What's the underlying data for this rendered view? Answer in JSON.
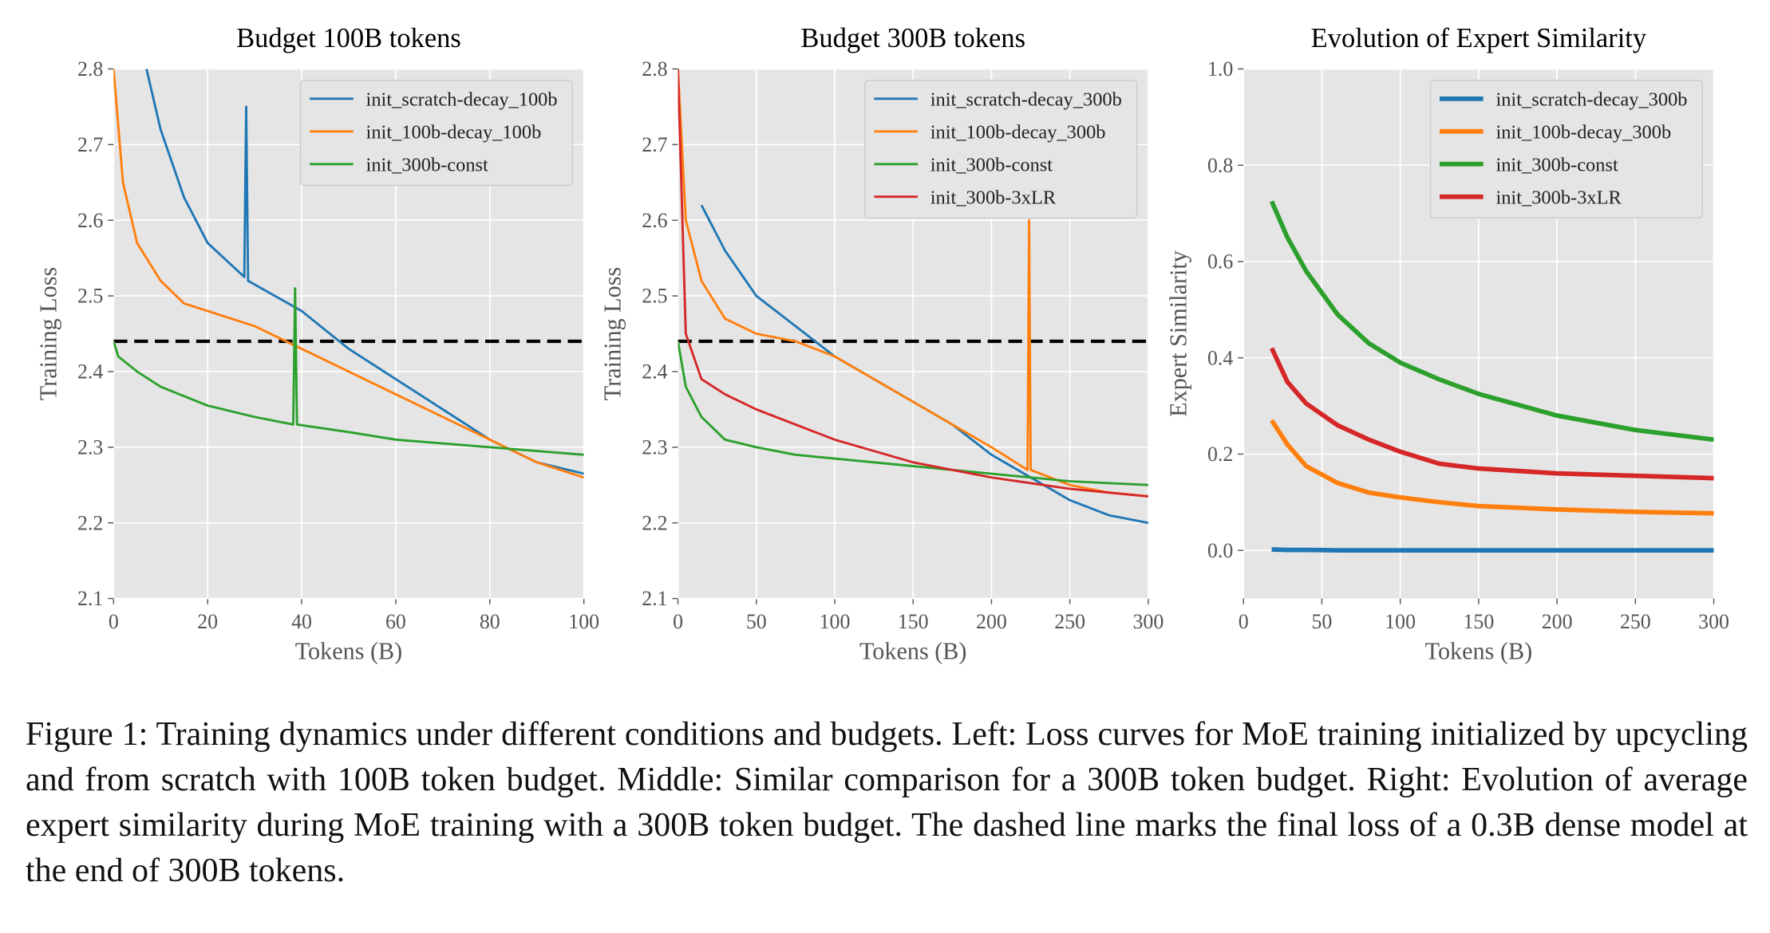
{
  "chart_data": [
    {
      "type": "line",
      "title": "Budget 100B tokens",
      "xlabel": "Tokens (B)",
      "ylabel": "Training Loss",
      "xlim": [
        0,
        100
      ],
      "ylim": [
        2.1,
        2.8
      ],
      "xticks": [
        0,
        20,
        40,
        60,
        80,
        100
      ],
      "yticks": [
        2.1,
        2.2,
        2.3,
        2.4,
        2.5,
        2.6,
        2.7,
        2.8
      ],
      "grid": true,
      "legend": "upper right",
      "hlines": [
        2.44
      ],
      "series": [
        {
          "name": "init_scratch-decay_100b",
          "color": "#1f77b4",
          "x": [
            7,
            10,
            15,
            20,
            27.8,
            28.2,
            28.6,
            40,
            50,
            60,
            70,
            80,
            90,
            100
          ],
          "values": [
            2.8,
            2.72,
            2.63,
            2.57,
            2.525,
            2.75,
            2.52,
            2.48,
            2.43,
            2.39,
            2.35,
            2.31,
            2.28,
            2.265
          ]
        },
        {
          "name": "init_100b-decay_100b",
          "color": "#ff7f0e",
          "x": [
            0,
            2,
            5,
            10,
            15,
            20,
            30,
            40,
            50,
            60,
            70,
            80,
            90,
            100
          ],
          "values": [
            2.8,
            2.65,
            2.57,
            2.52,
            2.49,
            2.48,
            2.46,
            2.43,
            2.4,
            2.37,
            2.34,
            2.31,
            2.28,
            2.26
          ]
        },
        {
          "name": "init_300b-const",
          "color": "#2ca02c",
          "x": [
            0,
            1,
            5,
            10,
            20,
            30,
            38.2,
            38.6,
            39,
            50,
            60,
            70,
            80,
            90,
            100
          ],
          "values": [
            2.44,
            2.42,
            2.4,
            2.38,
            2.355,
            2.34,
            2.33,
            2.51,
            2.33,
            2.32,
            2.31,
            2.305,
            2.3,
            2.295,
            2.29
          ]
        }
      ]
    },
    {
      "type": "line",
      "title": "Budget 300B tokens",
      "xlabel": "Tokens (B)",
      "ylabel": "Training Loss",
      "xlim": [
        0,
        300
      ],
      "ylim": [
        2.1,
        2.8
      ],
      "xticks": [
        0,
        50,
        100,
        150,
        200,
        250,
        300
      ],
      "yticks": [
        2.1,
        2.2,
        2.3,
        2.4,
        2.5,
        2.6,
        2.7,
        2.8
      ],
      "grid": true,
      "legend": "upper right",
      "hlines": [
        2.44
      ],
      "series": [
        {
          "name": "init_scratch-decay_300b",
          "color": "#1f77b4",
          "x": [
            15,
            30,
            50,
            75,
            100,
            125,
            150,
            175,
            200,
            225,
            250,
            275,
            300
          ],
          "values": [
            2.62,
            2.56,
            2.5,
            2.46,
            2.42,
            2.39,
            2.36,
            2.33,
            2.29,
            2.26,
            2.23,
            2.21,
            2.2
          ]
        },
        {
          "name": "init_100b-decay_300b",
          "color": "#ff7f0e",
          "x": [
            0,
            5,
            15,
            30,
            50,
            75,
            100,
            125,
            150,
            175,
            200,
            223,
            224,
            225,
            250,
            275,
            300
          ],
          "values": [
            2.8,
            2.6,
            2.52,
            2.47,
            2.45,
            2.44,
            2.42,
            2.39,
            2.36,
            2.33,
            2.3,
            2.27,
            2.6,
            2.27,
            2.25,
            2.24,
            2.235
          ]
        },
        {
          "name": "init_300b-const",
          "color": "#2ca02c",
          "x": [
            0,
            5,
            15,
            30,
            50,
            75,
            100,
            150,
            200,
            250,
            300
          ],
          "values": [
            2.44,
            2.38,
            2.34,
            2.31,
            2.3,
            2.29,
            2.285,
            2.275,
            2.265,
            2.255,
            2.25
          ]
        },
        {
          "name": "init_300b-3xLR",
          "color": "#d62728",
          "x": [
            0,
            5,
            15,
            30,
            50,
            75,
            100,
            150,
            200,
            250,
            300
          ],
          "values": [
            2.8,
            2.45,
            2.39,
            2.37,
            2.35,
            2.33,
            2.31,
            2.28,
            2.26,
            2.245,
            2.235
          ]
        }
      ]
    },
    {
      "type": "line",
      "title": "Evolution of Expert Similarity",
      "xlabel": "Tokens (B)",
      "ylabel": "Expert Similarity",
      "xlim": [
        0,
        300
      ],
      "ylim": [
        -0.1,
        1.0
      ],
      "xticks": [
        0,
        50,
        100,
        150,
        200,
        250,
        300
      ],
      "yticks": [
        {
          "value": 0,
          "label": "0.0"
        },
        0.2,
        0.4,
        0.6,
        0.8,
        {
          "value": 1,
          "label": "1.0"
        }
      ],
      "grid": true,
      "legend": "upper right",
      "series": [
        {
          "name": "init_scratch-decay_300b",
          "color": "#1f77b4",
          "x": [
            18,
            28,
            40,
            60,
            80,
            100,
            125,
            150,
            200,
            250,
            300
          ],
          "values": [
            0.002,
            0.001,
            0.001,
            0,
            0,
            0,
            0,
            0,
            0,
            0,
            0
          ]
        },
        {
          "name": "init_100b-decay_300b",
          "color": "#ff7f0e",
          "x": [
            18,
            28,
            40,
            60,
            80,
            100,
            125,
            150,
            200,
            250,
            300
          ],
          "values": [
            0.27,
            0.22,
            0.175,
            0.14,
            0.12,
            0.11,
            0.1,
            0.092,
            0.085,
            0.08,
            0.077
          ]
        },
        {
          "name": "init_300b-const",
          "color": "#2ca02c",
          "x": [
            18,
            28,
            40,
            60,
            80,
            100,
            125,
            150,
            200,
            250,
            300
          ],
          "values": [
            0.725,
            0.65,
            0.58,
            0.49,
            0.43,
            0.39,
            0.355,
            0.325,
            0.28,
            0.25,
            0.23
          ]
        },
        {
          "name": "init_300b-3xLR",
          "color": "#d62728",
          "x": [
            18,
            28,
            40,
            60,
            80,
            100,
            125,
            150,
            200,
            250,
            300
          ],
          "values": [
            0.42,
            0.35,
            0.305,
            0.26,
            0.23,
            0.205,
            0.18,
            0.17,
            0.16,
            0.155,
            0.15
          ]
        }
      ]
    }
  ],
  "caption": "Figure 1: Training dynamics under different conditions and budgets. Left: Loss curves for MoE training initialized by upcycling and from scratch with 100B token budget. Middle: Similar comparison for a 300B token budget. Right: Evolution of average expert similarity during MoE training with a 300B token budget. The dashed line marks the final loss of a 0.3B dense model at the end of 300B tokens."
}
